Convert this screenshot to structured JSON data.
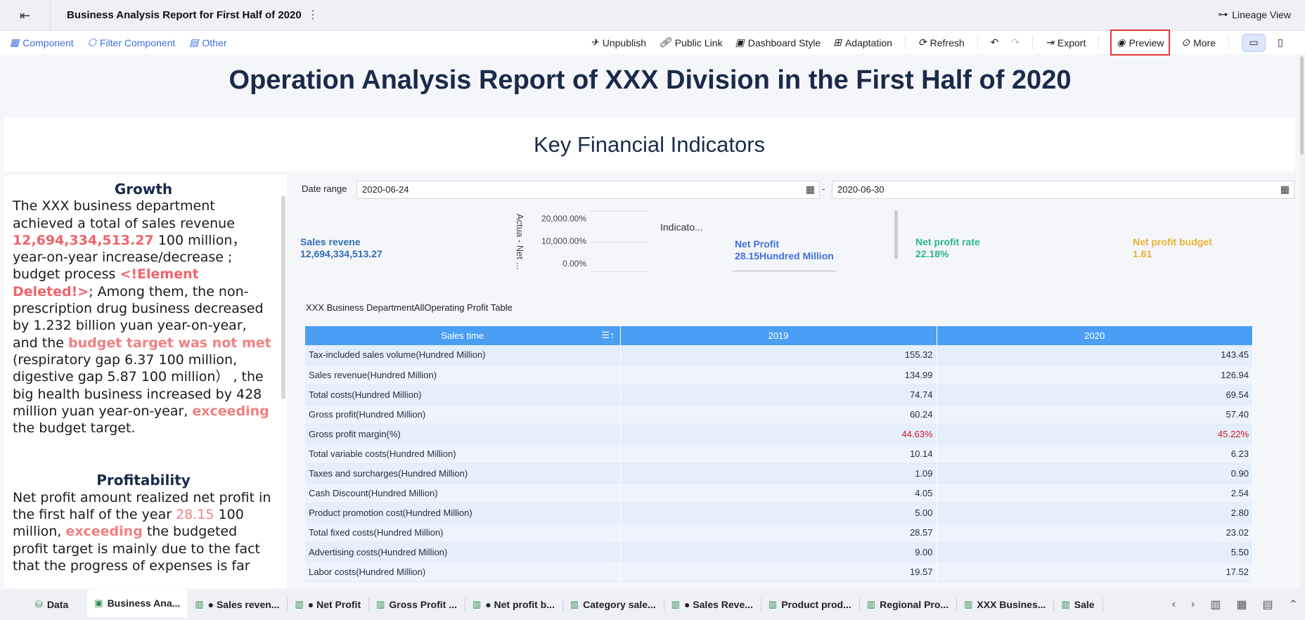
{
  "header": {
    "title": "Business Analysis Report for First Half of 2020",
    "lineage": "Lineage View"
  },
  "toolbar": {
    "left": [
      "Component",
      "Filter Component",
      "Other"
    ],
    "unpublish": "Unpublish",
    "public_link": "Public Link",
    "dashboard_style": "Dashboard Style",
    "adaptation": "Adaptation",
    "refresh": "Refresh",
    "export": "Export",
    "preview": "Preview",
    "more": "More"
  },
  "report": {
    "title": "Operation Analysis Report of XXX Division in the First Half of 2020",
    "section": "Key Financial Indicators"
  },
  "growth": {
    "heading": "Growth",
    "t1": "The XXX business department achieved a total of sales revenue ",
    "v1": "12,694,334,513.27",
    "t2": " 100 million， year-on-year increase/decrease ; budget process ",
    "v2": "<!Element Deleted!>",
    "t3": "; Among them, the non-prescription drug business decreased by 1.232 billion yuan year-on-year, and the ",
    "v3": "budget target was not met",
    "t4": " (respiratory gap 6.37 100 million, digestive gap 5.87 100 million） , the big health business increased by 428 million yuan year-on-year, ",
    "v4": "exceeding",
    "t5": " the budget target."
  },
  "profit": {
    "heading": "Profitability",
    "t1": "Net profit amount realized net profit in the first half of the year ",
    "v1": "28.15",
    "t2": " 100 million, ",
    "v2": "exceeding",
    "t3": " the budgeted profit target is mainly due to the fact that the progress of expenses is far"
  },
  "filter": {
    "label": "Date range",
    "start": "2020-06-24",
    "end": "2020-06-30",
    "sep": "-"
  },
  "kpis": {
    "sales_label": "Sales revene",
    "sales_value": "12,694,334,513.27",
    "chart_ylabel": "Actua - Net ...",
    "chart_ticks": [
      "20,000.00%",
      "10,000.00%",
      "0.00%"
    ],
    "indicator": "Indicato...",
    "np_label": "Net Profit",
    "np_value": "28.15Hundred Million",
    "npr_label": "Net profit rate",
    "npr_value": "22.18%",
    "npb_label": "Net profit budget",
    "npb_value": "1.61",
    "colors": {
      "sales": "#2f6fb5",
      "np": "#3f6fe0",
      "npr": "#2bb58a",
      "npb": "#e8b330"
    }
  },
  "table": {
    "title": "XXX Business DepartmentAllOperating Profit Table",
    "headers": [
      "Sales time",
      "2019",
      "2020"
    ],
    "rows": [
      [
        "Tax-included sales volume(Hundred Million)",
        "155.32",
        "143.45"
      ],
      [
        "Sales revenue(Hundred Million)",
        "134.99",
        "126.94"
      ],
      [
        "Total costs(Hundred Million)",
        "74.74",
        "69.54"
      ],
      [
        "Gross profit(Hundred Million)",
        "60.24",
        "57.40"
      ],
      [
        "Gross profit margin(%)",
        "44.63%",
        "45.22%"
      ],
      [
        "Total variable costs(Hundred Million)",
        "10.14",
        "6.23"
      ],
      [
        "Taxes and surcharges(Hundred Million)",
        "1.09",
        "0.90"
      ],
      [
        "Cash Discount(Hundred Million)",
        "4.05",
        "2.54"
      ],
      [
        "Product promotion cost(Hundred Million)",
        "5.00",
        "2.80"
      ],
      [
        "Total fixed costs(Hundred Million)",
        "28.57",
        "23.02"
      ],
      [
        "Advertising costs(Hundred Million)",
        "9.00",
        "5.50"
      ],
      [
        "Labor costs(Hundred Million)",
        "19.57",
        "17.52"
      ]
    ]
  },
  "tabs": [
    "Data",
    "Business Ana...",
    "● Sales reven...",
    "● Net Profit",
    "Gross Profit ...",
    "● Net profit b...",
    "Category sale...",
    "● Sales Reve...",
    "Product prod...",
    "Regional Pro...",
    "XXX Busines...",
    "Sale"
  ]
}
